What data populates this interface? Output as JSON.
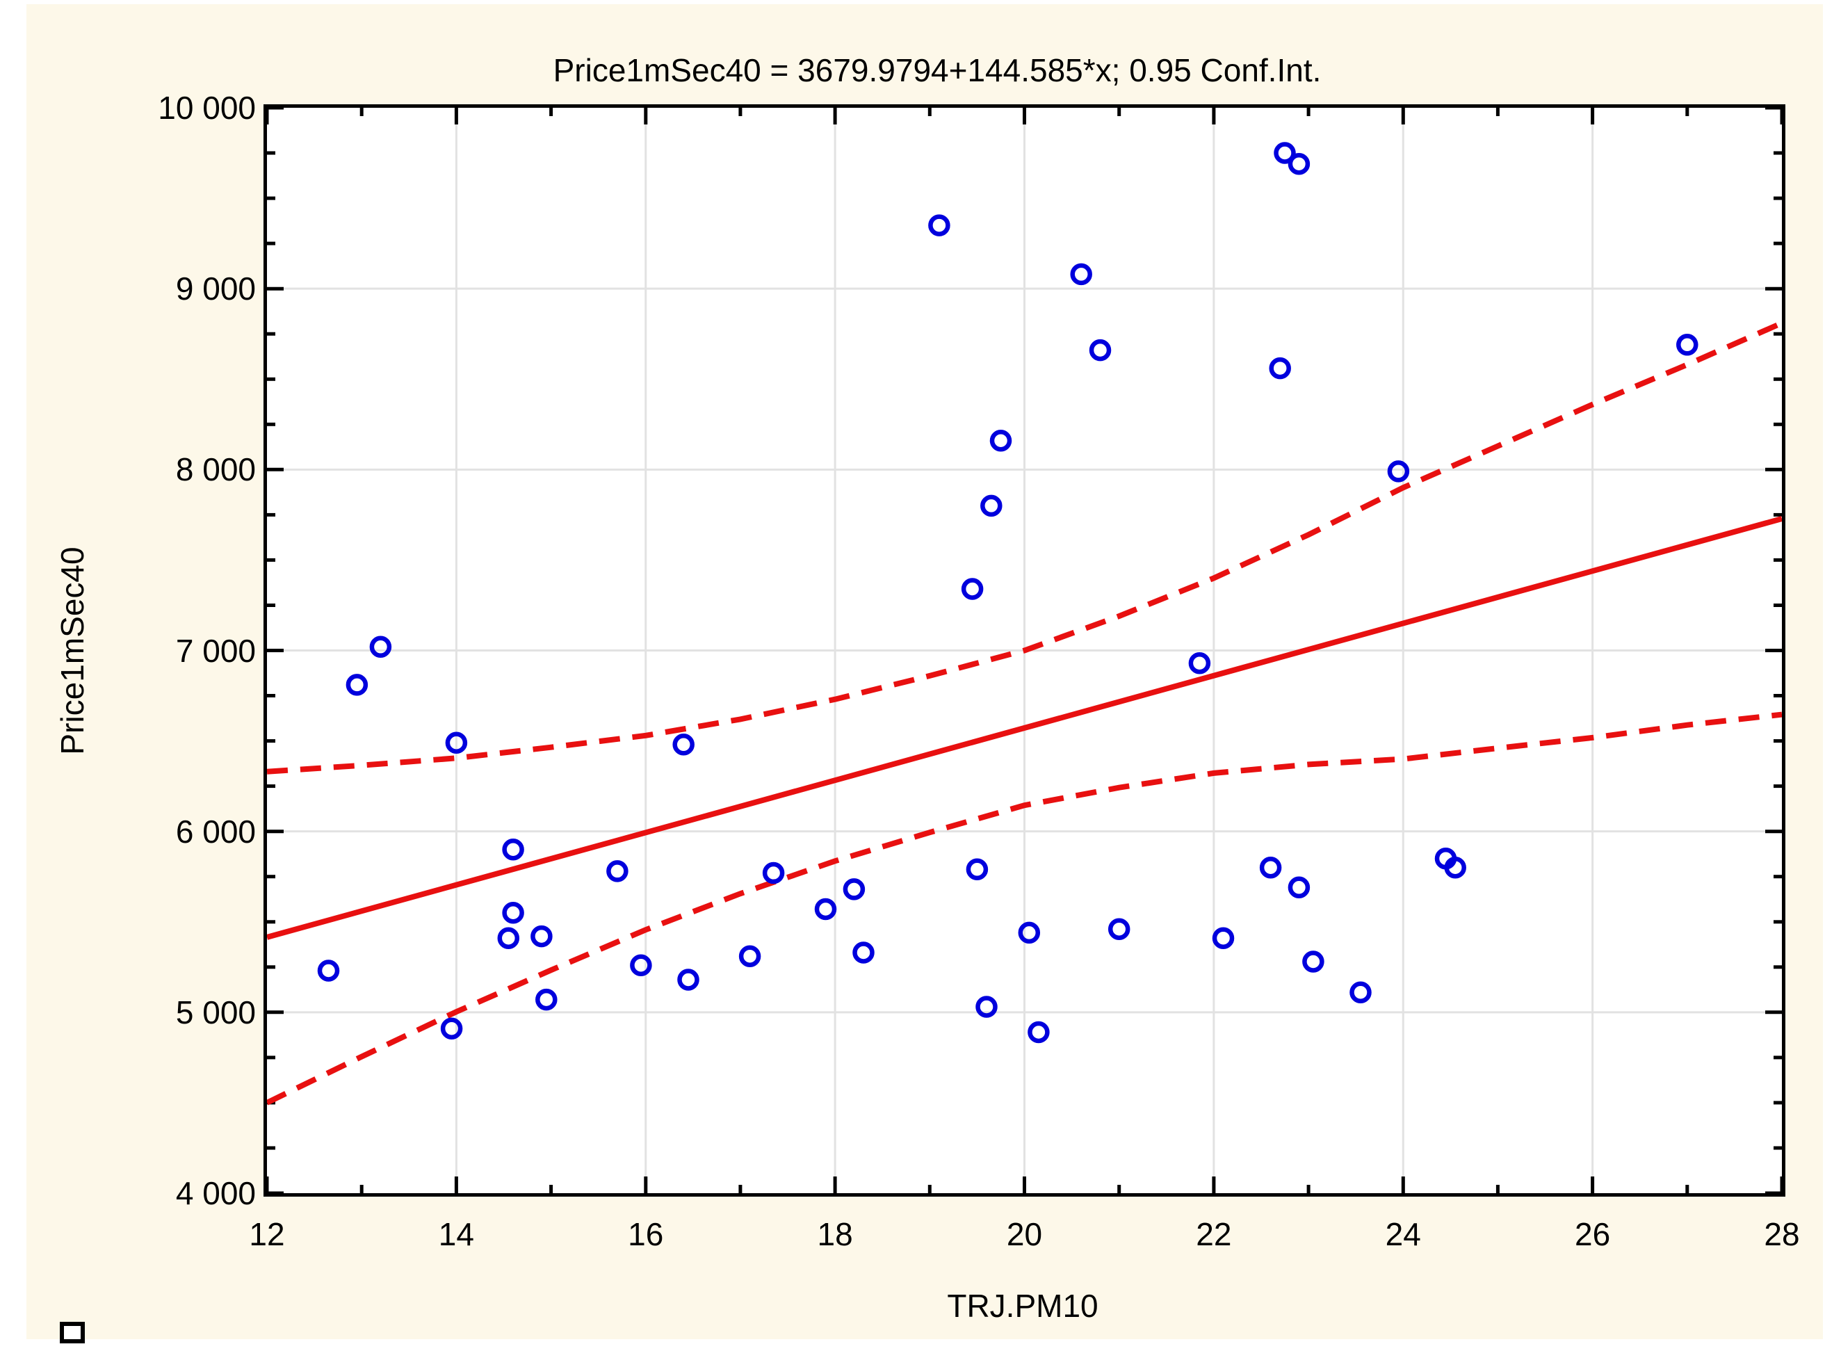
{
  "header": {
    "title": "Price1mSec40  = 3679.9794+144.585*x; 0.95 Conf.Int."
  },
  "axes": {
    "x": {
      "title": "TRJ.PM10"
    },
    "y": {
      "title": "Price1mSec40"
    }
  },
  "chart_data": {
    "type": "scatter",
    "title": "Price1mSec40  = 3679.9794+144.585*x; 0.95 Conf.Int.",
    "xlabel": "TRJ.PM10",
    "ylabel": "Price1mSec40",
    "xlim": [
      12,
      28
    ],
    "ylim": [
      4000,
      10000
    ],
    "grid": true,
    "legend_position": "none",
    "regression": {
      "intercept": 3679.9794,
      "slope": 144.585,
      "conf_level": 0.95
    },
    "x_ticks": [
      {
        "v": 12,
        "label": "12"
      },
      {
        "v": 14,
        "label": "14"
      },
      {
        "v": 16,
        "label": "16"
      },
      {
        "v": 18,
        "label": "18"
      },
      {
        "v": 20,
        "label": "20"
      },
      {
        "v": 22,
        "label": "22"
      },
      {
        "v": 24,
        "label": "24"
      },
      {
        "v": 26,
        "label": "26"
      },
      {
        "v": 28,
        "label": "28"
      }
    ],
    "y_ticks": [
      {
        "v": 10000,
        "label": "10 000"
      },
      {
        "v": 9000,
        "label": "9 000"
      },
      {
        "v": 8000,
        "label": "8 000"
      },
      {
        "v": 7000,
        "label": "7 000"
      },
      {
        "v": 6000,
        "label": "6 000"
      },
      {
        "v": 5000,
        "label": "5 000"
      },
      {
        "v": 4000,
        "label": "4 000"
      }
    ],
    "x_minor_ticks": [
      13,
      15,
      17,
      19,
      21,
      23,
      25,
      27
    ],
    "y_minor_ticks": [
      4250,
      4500,
      4750,
      5250,
      5500,
      5750,
      6250,
      6500,
      6750,
      7250,
      7500,
      7750,
      8250,
      8500,
      8750,
      9250,
      9500,
      9750
    ],
    "x_gridlines": [
      14,
      16,
      18,
      20,
      22,
      24,
      26
    ],
    "y_gridlines": [
      5000,
      6000,
      7000,
      8000,
      9000
    ],
    "points": [
      [
        12.65,
        5230
      ],
      [
        12.95,
        6810
      ],
      [
        13.2,
        7020
      ],
      [
        13.95,
        4910
      ],
      [
        14.0,
        6490
      ],
      [
        14.55,
        5410
      ],
      [
        14.6,
        5900
      ],
      [
        14.6,
        5550
      ],
      [
        14.9,
        5420
      ],
      [
        14.95,
        5070
      ],
      [
        15.7,
        5780
      ],
      [
        15.95,
        5260
      ],
      [
        16.4,
        6480
      ],
      [
        16.45,
        5180
      ],
      [
        17.1,
        5310
      ],
      [
        17.35,
        5770
      ],
      [
        17.9,
        5570
      ],
      [
        18.2,
        5680
      ],
      [
        18.3,
        5330
      ],
      [
        19.1,
        9350
      ],
      [
        19.45,
        7340
      ],
      [
        19.5,
        5790
      ],
      [
        19.6,
        5030
      ],
      [
        19.65,
        7800
      ],
      [
        19.75,
        8160
      ],
      [
        20.05,
        5440
      ],
      [
        20.15,
        4890
      ],
      [
        20.6,
        9080
      ],
      [
        20.8,
        8660
      ],
      [
        21.0,
        5460
      ],
      [
        21.85,
        6930
      ],
      [
        22.1,
        5410
      ],
      [
        22.6,
        5800
      ],
      [
        22.7,
        8560
      ],
      [
        22.75,
        9750
      ],
      [
        22.9,
        9690
      ],
      [
        22.9,
        5690
      ],
      [
        23.05,
        5280
      ],
      [
        23.55,
        5110
      ],
      [
        23.95,
        7990
      ],
      [
        24.45,
        5850
      ],
      [
        24.55,
        5800
      ],
      [
        27.0,
        8690
      ]
    ],
    "regression_line": [
      [
        12,
        5415
      ],
      [
        28,
        7728.4
      ]
    ],
    "conf_upper": [
      [
        12,
        6330
      ],
      [
        13,
        6365
      ],
      [
        14,
        6405
      ],
      [
        15,
        6465
      ],
      [
        16,
        6530
      ],
      [
        17,
        6620
      ],
      [
        18,
        6730
      ],
      [
        19,
        6860
      ],
      [
        20,
        7000
      ],
      [
        21,
        7190
      ],
      [
        22,
        7400
      ],
      [
        23,
        7640
      ],
      [
        24,
        7900
      ],
      [
        25,
        8130
      ],
      [
        26,
        8360
      ],
      [
        27,
        8580
      ],
      [
        28,
        8810
      ]
    ],
    "conf_lower": [
      [
        12,
        4500
      ],
      [
        13,
        4755
      ],
      [
        14,
        5003
      ],
      [
        15,
        5233
      ],
      [
        16,
        5456
      ],
      [
        17,
        5656
      ],
      [
        18,
        5836
      ],
      [
        19,
        5994
      ],
      [
        20,
        6144
      ],
      [
        21,
        6242
      ],
      [
        22,
        6322
      ],
      [
        23,
        6370
      ],
      [
        24,
        6400
      ],
      [
        25,
        6460
      ],
      [
        26,
        6518
      ],
      [
        27,
        6588
      ],
      [
        28,
        6646
      ]
    ],
    "colors": {
      "background": "#FDF8E9",
      "plot_background": "#ffffff",
      "frame": "#000000",
      "grid": "#E2E2E2",
      "point": "#0000DD",
      "line": "#E81010"
    }
  }
}
